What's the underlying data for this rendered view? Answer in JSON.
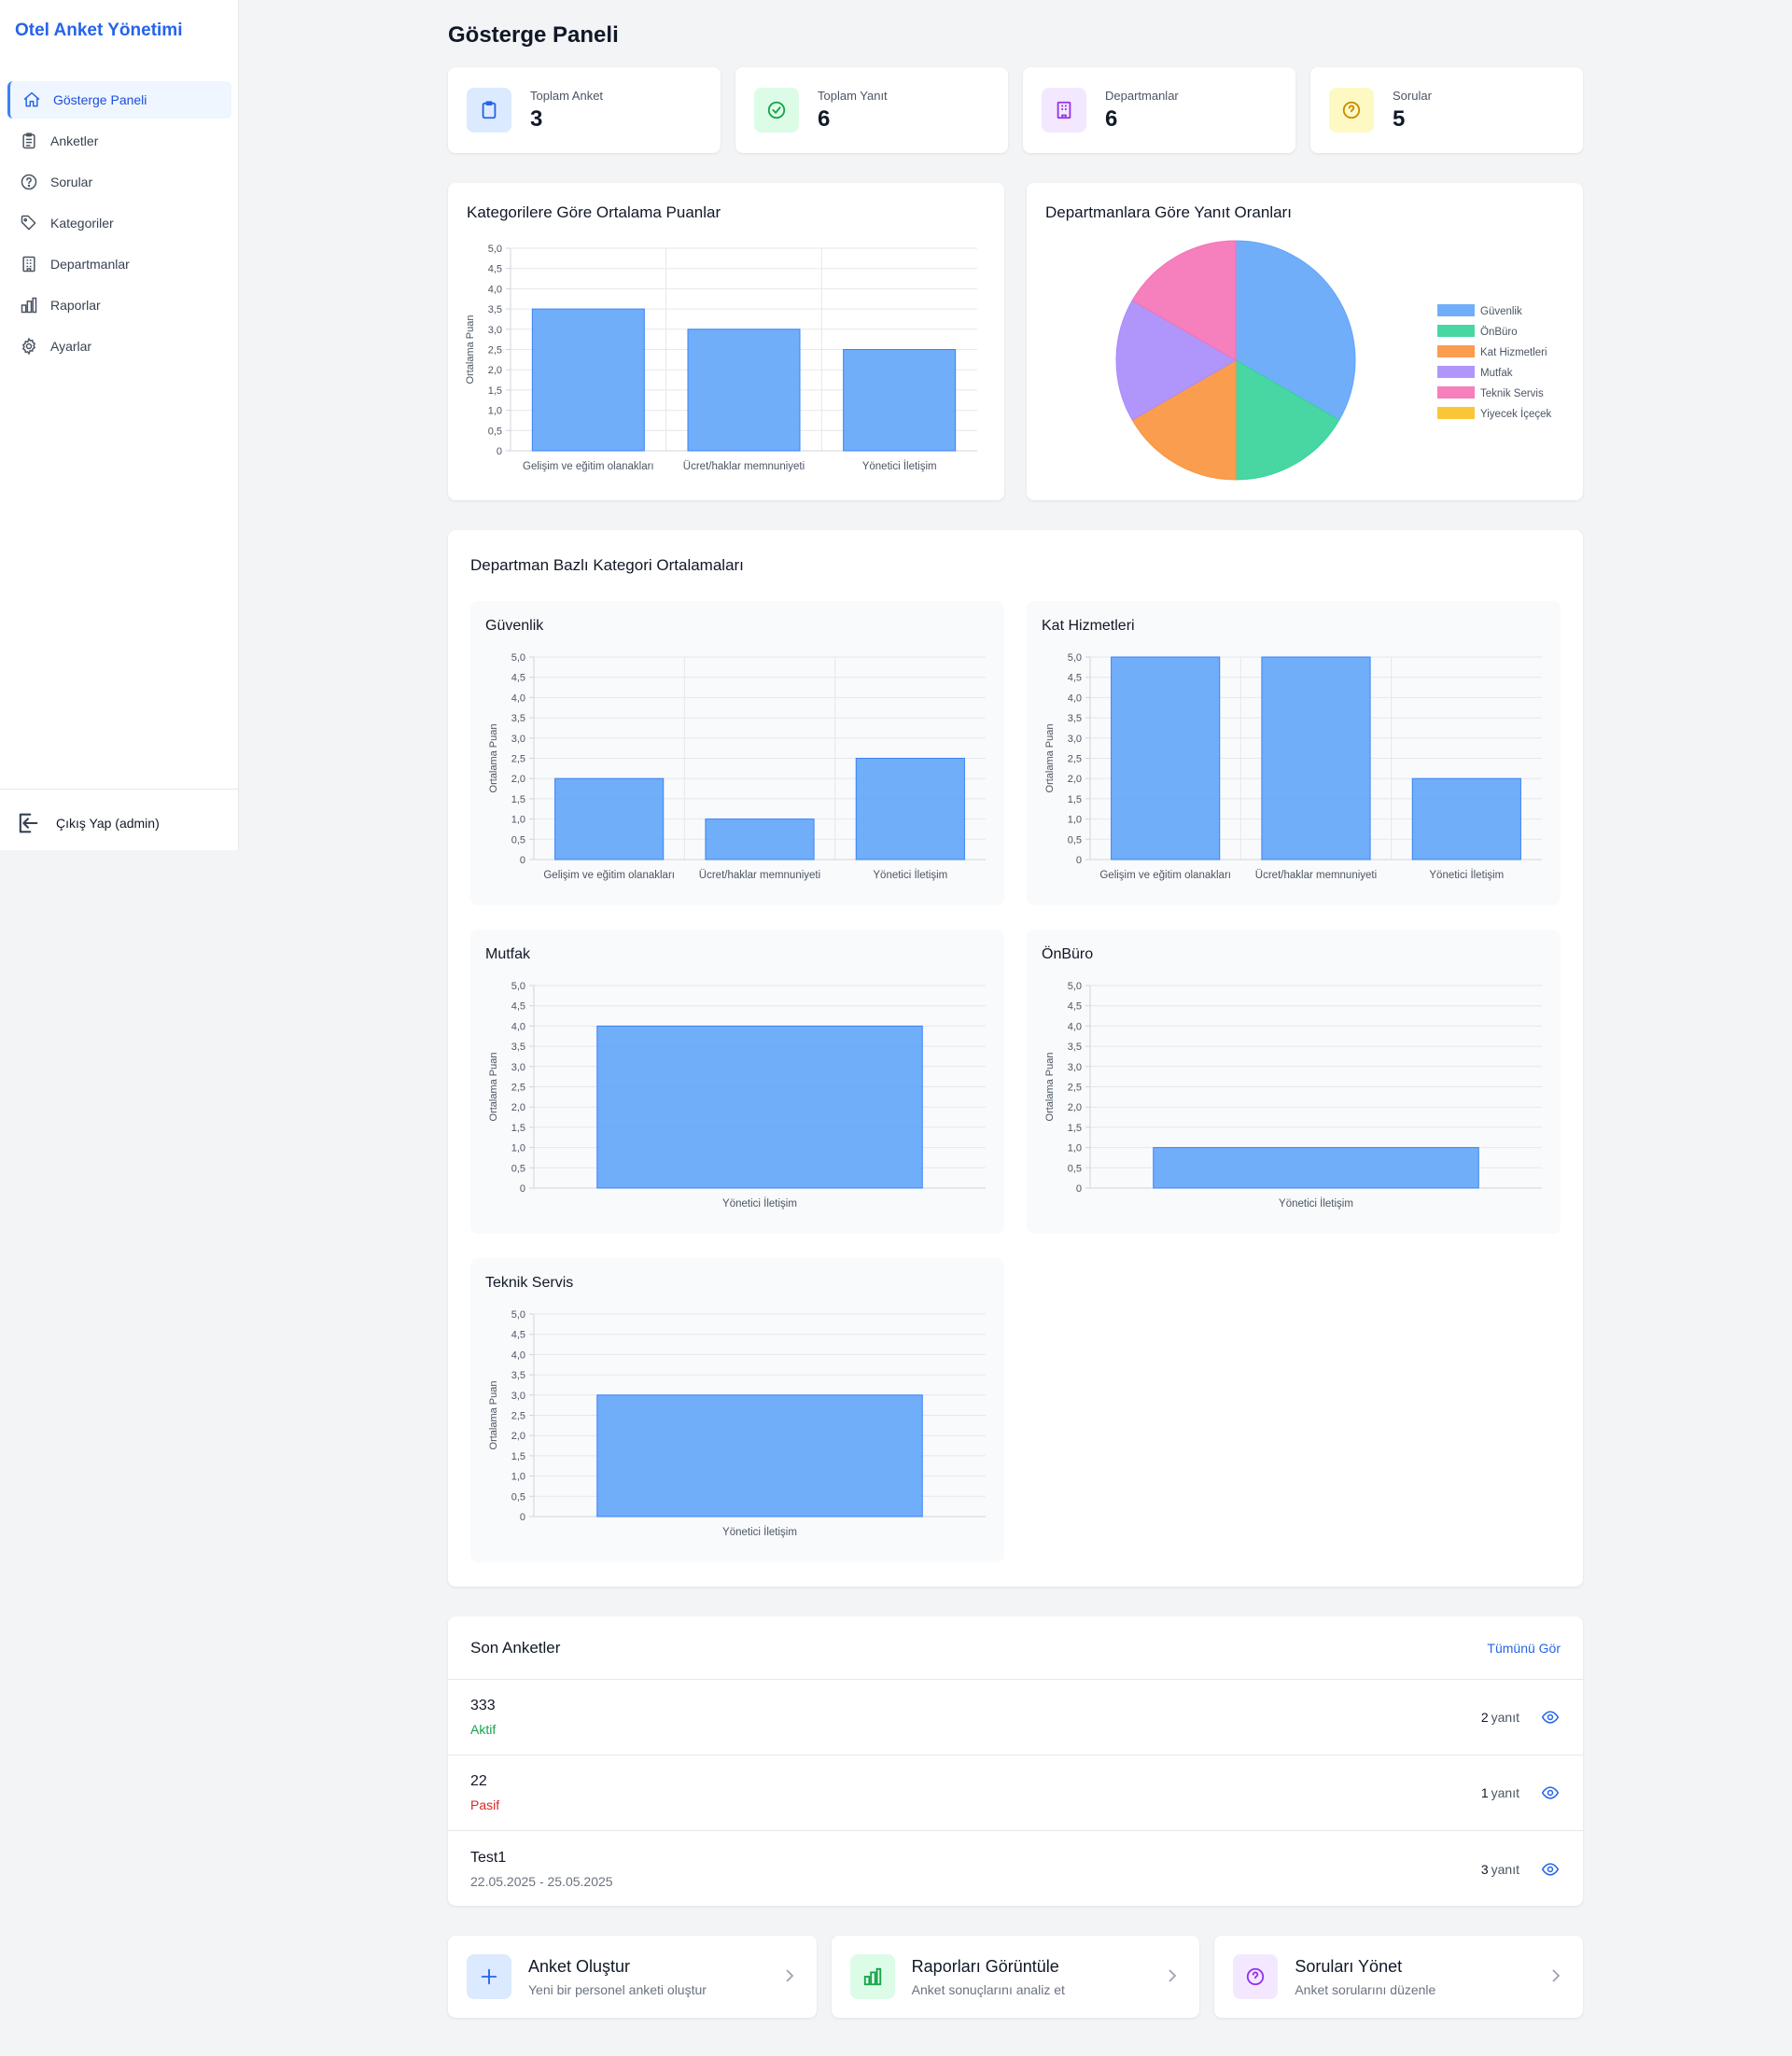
{
  "app": {
    "brand": "Otel Anket Yönetimi"
  },
  "sidebar": {
    "items": [
      {
        "label": "Gösterge Paneli",
        "icon": "home-icon",
        "active": true
      },
      {
        "label": "Anketler",
        "icon": "clipboard-list-icon"
      },
      {
        "label": "Sorular",
        "icon": "question-circle-icon"
      },
      {
        "label": "Kategoriler",
        "icon": "tag-icon"
      },
      {
        "label": "Departmanlar",
        "icon": "building-icon"
      },
      {
        "label": "Raporlar",
        "icon": "bar-chart-icon"
      },
      {
        "label": "Ayarlar",
        "icon": "gear-icon"
      }
    ],
    "logout_label": "Çıkış Yap (admin)"
  },
  "page": {
    "title": "Gösterge Paneli"
  },
  "stats": [
    {
      "label": "Toplam Anket",
      "value": "3",
      "icon": "clipboard-icon",
      "color": "#2563eb",
      "bg": "#dbeafe"
    },
    {
      "label": "Toplam Yanıt",
      "value": "6",
      "icon": "check-circle-icon",
      "color": "#16a34a",
      "bg": "#dcfce7"
    },
    {
      "label": "Departmanlar",
      "value": "6",
      "icon": "building-icon",
      "color": "#9333ea",
      "bg": "#f3e8ff"
    },
    {
      "label": "Sorular",
      "value": "5",
      "icon": "question-circle-icon",
      "color": "#ca8a04",
      "bg": "#fef9c3"
    }
  ],
  "category_chart": {
    "title": "Kategorilere Göre Ortalama Puanlar"
  },
  "pie_chart": {
    "title": "Departmanlara Göre Yanıt Oranları"
  },
  "dept_section": {
    "title": "Departman Bazlı Kategori Ortalamaları"
  },
  "chart_data": [
    {
      "type": "bar",
      "title": "Kategorilere Göre Ortalama Puanlar",
      "categories": [
        "Gelişim ve eğitim olanakları",
        "Ücret/haklar memnuniyeti",
        "Yönetici İletişim"
      ],
      "values": [
        3.5,
        3.0,
        2.5
      ],
      "xlabel": "",
      "ylabel": "Ortalama Puan",
      "ylim": [
        0,
        5
      ],
      "grid": true,
      "color": "#60a5fa"
    },
    {
      "type": "pie",
      "title": "Departmanlara Göre Yanıt Oranları",
      "labels": [
        "Güvenlik",
        "ÖnBüro",
        "Kat Hizmetleri",
        "Mutfak",
        "Teknik Servis",
        "Yiyecek İçeçek"
      ],
      "values": [
        2,
        1,
        1,
        1,
        1,
        0
      ],
      "colors": [
        "#60a5fa",
        "#34d399",
        "#fb923c",
        "#a78bfa",
        "#f472b6",
        "#fbbf24"
      ],
      "legend": "right"
    },
    {
      "type": "bar",
      "title": "Güvenlik",
      "categories": [
        "Gelişim ve eğitim olanakları",
        "Ücret/haklar memnuniyeti",
        "Yönetici İletişim"
      ],
      "values": [
        2.0,
        1.0,
        2.5
      ],
      "ylabel": "Ortalama Puan",
      "ylim": [
        0,
        5
      ],
      "grid": true
    },
    {
      "type": "bar",
      "title": "Kat Hizmetleri",
      "categories": [
        "Gelişim ve eğitim olanakları",
        "Ücret/haklar memnuniyeti",
        "Yönetici İletişim"
      ],
      "values": [
        5.0,
        5.0,
        2.0
      ],
      "ylabel": "Ortalama Puan",
      "ylim": [
        0,
        5
      ],
      "grid": true
    },
    {
      "type": "bar",
      "title": "Mutfak",
      "categories": [
        "Yönetici İletişim"
      ],
      "values": [
        4.0
      ],
      "ylabel": "Ortalama Puan",
      "ylim": [
        0,
        5
      ],
      "grid": true
    },
    {
      "type": "bar",
      "title": "ÖnBüro",
      "categories": [
        "Yönetici İletişim"
      ],
      "values": [
        1.0
      ],
      "ylabel": "Ortalama Puan",
      "ylim": [
        0,
        5
      ],
      "grid": true
    },
    {
      "type": "bar",
      "title": "Teknik Servis",
      "categories": [
        "Yönetici İletişim"
      ],
      "values": [
        3.0
      ],
      "ylabel": "Ortalama Puan",
      "ylim": [
        0,
        5
      ],
      "grid": true
    }
  ],
  "recent": {
    "title": "Son Anketler",
    "see_all": "Tümünü Gör",
    "items": [
      {
        "name": "333",
        "sub": "Aktif",
        "sub_color": "#16a34a",
        "count": "2",
        "count_label": "yanıt"
      },
      {
        "name": "22",
        "sub": "Pasif",
        "sub_color": "#dc2626",
        "count": "1",
        "count_label": "yanıt"
      },
      {
        "name": "Test1",
        "sub": "22.05.2025 - 25.05.2025",
        "sub_color": "#6b7280",
        "count": "3",
        "count_label": "yanıt"
      }
    ]
  },
  "actions": [
    {
      "title": "Anket Oluştur",
      "desc": "Yeni bir personel anketi oluştur",
      "icon": "plus-icon",
      "color": "#2563eb",
      "bg": "#dbeafe"
    },
    {
      "title": "Raporları Görüntüle",
      "desc": "Anket sonuçlarını analiz et",
      "icon": "bar-chart-icon",
      "color": "#16a34a",
      "bg": "#dcfce7"
    },
    {
      "title": "Soruları Yönet",
      "desc": "Anket sorularını düzenle",
      "icon": "question-circle-icon",
      "color": "#9333ea",
      "bg": "#f3e8ff"
    }
  ]
}
